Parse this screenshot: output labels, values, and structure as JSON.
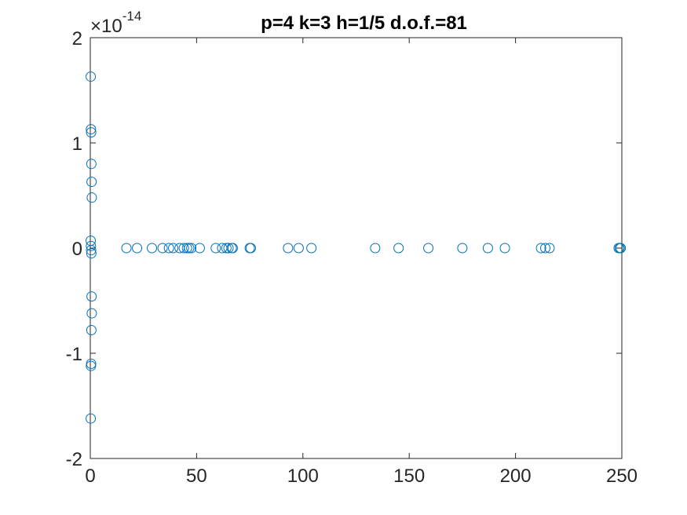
{
  "chart_data": {
    "type": "scatter",
    "title": "p=4 k=3 h=1/5 d.o.f.=81",
    "xlabel": "",
    "ylabel": "",
    "xlim": [
      0,
      250
    ],
    "ylim": [
      -2e-14,
      2e-14
    ],
    "x_ticks": [
      0,
      50,
      100,
      150,
      200,
      250
    ],
    "x_tick_labels": [
      "0",
      "50",
      "100",
      "150",
      "200",
      "250"
    ],
    "y_ticks": [
      -2e-14,
      -1e-14,
      0,
      1e-14,
      2e-14
    ],
    "y_tick_labels": [
      "-2",
      "-1",
      "0",
      "1",
      "2"
    ],
    "y_exponent": {
      "base": "×10",
      "power": "-14"
    },
    "marker": "open-circle",
    "grid": false,
    "legend": "none",
    "colors": {
      "marker": "#0072BD",
      "axes": "#262626",
      "title": "#000000"
    },
    "series": [
      {
        "x": [
          0.2,
          0.3,
          0.4,
          0.5,
          0.6,
          0.7,
          0.2,
          0.3,
          0.4,
          0.5,
          0.6,
          0.7,
          0.5,
          0.4,
          0.3,
          0.2,
          17,
          22,
          29,
          34,
          37,
          39,
          42,
          44,
          45.5,
          46.5,
          47.5,
          51.5,
          59,
          62,
          64,
          65,
          66.5,
          67,
          75,
          75.5,
          93,
          98,
          104,
          134,
          145,
          159,
          175,
          187,
          195,
          212,
          214,
          216,
          248.5,
          249,
          249.5
        ],
        "y": [
          1.63e-14,
          1.13e-14,
          1.1e-14,
          8e-15,
          6.3e-15,
          4.8e-15,
          7e-16,
          2e-16,
          -2e-16,
          -5e-16,
          -4.6e-15,
          -6.2e-15,
          -7.8e-15,
          -1.1e-14,
          -1.12e-14,
          -1.62e-14,
          0,
          0,
          0,
          0,
          0,
          0,
          0,
          0,
          0,
          0,
          0,
          0,
          0,
          0,
          0,
          0,
          0,
          0,
          0,
          0,
          0,
          0,
          0,
          0,
          0,
          0,
          0,
          0,
          0,
          0,
          0,
          0,
          0,
          0,
          0
        ]
      }
    ]
  }
}
